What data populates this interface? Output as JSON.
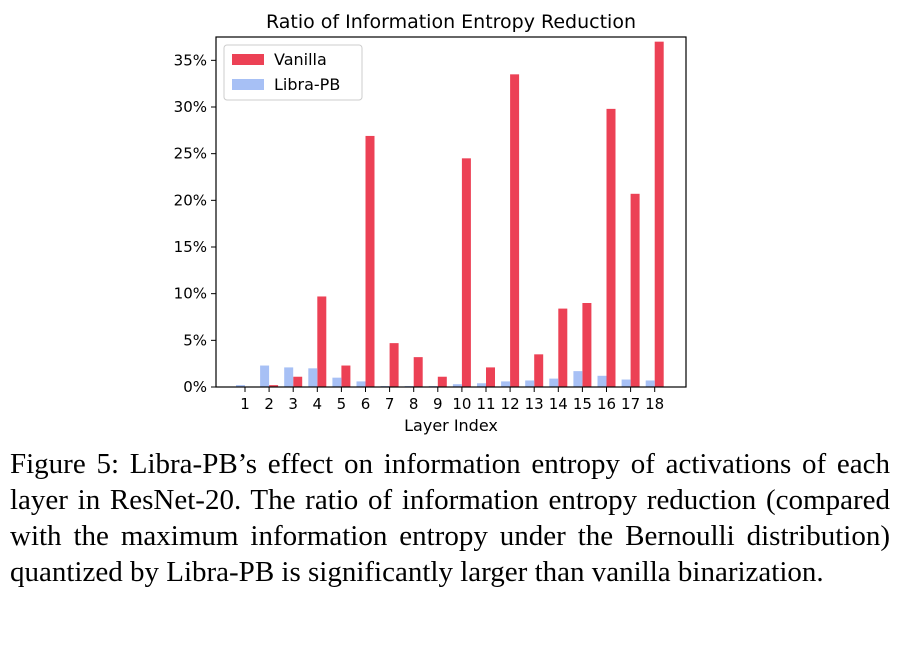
{
  "chart_data": {
    "type": "bar",
    "title": "Ratio of Information Entropy Reduction",
    "xlabel": "Layer Index",
    "ylabel": "",
    "categories": [
      "1",
      "2",
      "3",
      "4",
      "5",
      "6",
      "7",
      "8",
      "9",
      "10",
      "11",
      "12",
      "13",
      "14",
      "15",
      "16",
      "17",
      "18"
    ],
    "series": [
      {
        "name": "Vanilla",
        "color": "#ec4155",
        "values": [
          0.0,
          0.2,
          1.1,
          9.7,
          2.3,
          26.9,
          4.7,
          3.2,
          1.1,
          24.5,
          2.1,
          33.5,
          3.5,
          8.4,
          9.0,
          29.8,
          20.7,
          37.0
        ]
      },
      {
        "name": "Libra-PB",
        "color": "#a7c0f5",
        "values": [
          0.2,
          2.3,
          2.1,
          2.0,
          1.0,
          0.6,
          0.1,
          0.1,
          0.1,
          0.3,
          0.4,
          0.6,
          0.7,
          0.9,
          1.7,
          1.2,
          0.8,
          0.7
        ]
      }
    ],
    "ylim": [
      0,
      37.5
    ],
    "yticks": [
      0,
      5,
      10,
      15,
      20,
      25,
      30,
      35
    ],
    "ytick_labels": [
      "0%",
      "5%",
      "10%",
      "15%",
      "20%",
      "25%",
      "30%",
      "35%"
    ],
    "legend": {
      "position": "top-left",
      "entries": [
        "Vanilla",
        "Libra-PB"
      ]
    },
    "grid": false
  },
  "caption": "Figure 5: Libra-PB’s effect on information entropy of activations of each layer in ResNet-20. The ratio of information entropy reduction (compared with the maximum information entropy under the Bernoulli distribution) quantized by Libra-PB is significantly larger than vanilla binarization."
}
